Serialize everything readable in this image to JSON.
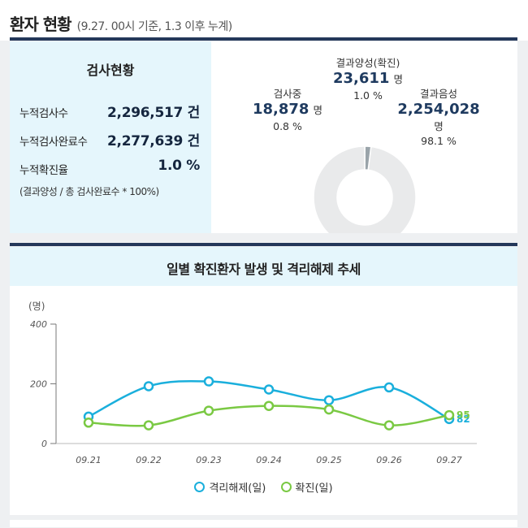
{
  "header": {
    "title": "환자 현황",
    "subtitle": "(9.27. 00시 기준, 1.3 이후 누계)"
  },
  "stats": {
    "title": "검사현황",
    "rows": [
      {
        "label": "누적검사수",
        "value": "2,296,517 건"
      },
      {
        "label": "누적검사완료수",
        "value": "2,277,639 건"
      },
      {
        "label": "누적확진율",
        "value": "1.0 %"
      }
    ],
    "formula": "(결과양성 / 총 검사완료수 * 100%)"
  },
  "colors": {
    "header_rule": "#24385a",
    "positive": "#1aa7d8",
    "negative": "#e9eaeb",
    "pending": "#9aa4aa",
    "release_line": "#1aafdc",
    "confirmed_line": "#7ac943",
    "panel_bg": "#e5f6fc"
  },
  "chart_data": [
    {
      "type": "pie",
      "donut": true,
      "slices": [
        {
          "name": "결과양성(확진)",
          "value": 23611,
          "unit": "명",
          "percent_label": "1.0 %"
        },
        {
          "name": "결과음성",
          "value": 2254028,
          "unit": "명",
          "percent_label": "98.1 %"
        },
        {
          "name": "검사중",
          "value": 18878,
          "unit": "명",
          "percent_label": "0.8 %"
        }
      ],
      "value_labels": [
        "23,611",
        "2,254,028",
        "18,878"
      ]
    },
    {
      "type": "line",
      "title": "일별 확진환자 발생 및 격리해제 추세",
      "ylabel": "(명)",
      "ylim": [
        0,
        400
      ],
      "yticks": [
        "0",
        "200",
        "400"
      ],
      "categories": [
        "09.21",
        "09.22",
        "09.23",
        "09.24",
        "09.25",
        "09.26",
        "09.27"
      ],
      "series": [
        {
          "name": "격리해제(일)",
          "values": [
            90,
            192,
            208,
            181,
            145,
            188,
            82
          ],
          "last_label": "82"
        },
        {
          "name": "확진(일)",
          "values": [
            70,
            61,
            110,
            126,
            114,
            61,
            95
          ],
          "last_label": "95"
        }
      ],
      "grid": false,
      "legend_position": "bottom"
    }
  ]
}
